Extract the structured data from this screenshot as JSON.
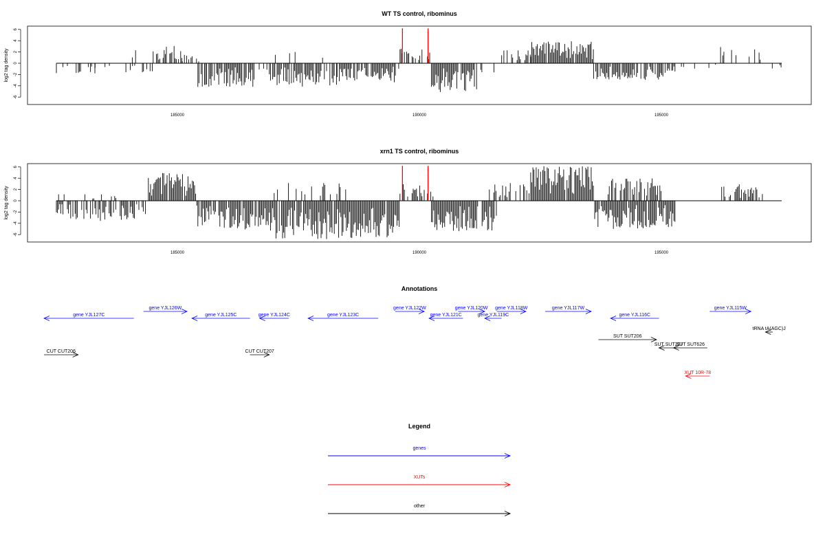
{
  "chart_data": [
    {
      "type": "bar",
      "title": "WT TS control, ribominus",
      "ylabel": "log2 tag density",
      "xlim": [
        182200,
        197600
      ],
      "ylim": [
        -6.5,
        6.5
      ],
      "xticks": [
        "185000",
        "190000",
        "195000"
      ],
      "yticks": [
        "6",
        "4",
        "2",
        "0",
        "-2",
        "-4",
        "-6"
      ],
      "grid": false,
      "series": [
        {
          "color": "#000000",
          "segments": [
            {
              "x0": 182200,
              "x1": 183300,
              "density": 0.25,
              "amp": 2.0,
              "sign": -1
            },
            {
              "x0": 183300,
              "x1": 184500,
              "density": 0.15,
              "amp": 1.6,
              "sign": -1
            },
            {
              "x0": 184000,
              "x1": 184200,
              "density": 0.3,
              "amp": 2.8,
              "sign": 1
            },
            {
              "x0": 184500,
              "x1": 185100,
              "density": 0.7,
              "amp": 3.2,
              "sign": 1
            },
            {
              "x0": 185100,
              "x1": 185500,
              "density": 0.3,
              "amp": 1.5,
              "sign": 1
            },
            {
              "x0": 185400,
              "x1": 186600,
              "density": 0.85,
              "amp": 4.2,
              "sign": -1
            },
            {
              "x0": 186600,
              "x1": 186900,
              "density": 0.2,
              "amp": 1.2,
              "sign": -1
            },
            {
              "x0": 186900,
              "x1": 188300,
              "density": 0.85,
              "amp": 4.2,
              "sign": -1
            },
            {
              "x0": 187000,
              "x1": 187500,
              "density": 0.2,
              "amp": 2.6,
              "sign": 1
            },
            {
              "x0": 188300,
              "x1": 189600,
              "density": 0.85,
              "amp": 3.4,
              "sign": -1
            },
            {
              "x0": 188000,
              "x1": 188500,
              "density": 0.15,
              "amp": 2.0,
              "sign": 1
            },
            {
              "x0": 189600,
              "x1": 190300,
              "density": 0.6,
              "amp": 2.6,
              "sign": 1
            },
            {
              "x0": 190250,
              "x1": 191200,
              "density": 0.95,
              "amp": 5.2,
              "sign": -1
            },
            {
              "x0": 191200,
              "x1": 191700,
              "density": 0.25,
              "amp": 2.0,
              "sign": -1
            },
            {
              "x0": 191700,
              "x1": 192300,
              "density": 0.5,
              "amp": 2.4,
              "sign": 1
            },
            {
              "x0": 192300,
              "x1": 193600,
              "density": 0.95,
              "amp": 3.9,
              "sign": 1
            },
            {
              "x0": 193600,
              "x1": 195300,
              "density": 0.8,
              "amp": 3.0,
              "sign": -1
            },
            {
              "x0": 195300,
              "x1": 196200,
              "density": 0.15,
              "amp": 1.0,
              "sign": -1
            },
            {
              "x0": 196200,
              "x1": 197100,
              "density": 0.3,
              "amp": 3.2,
              "sign": 1
            },
            {
              "x0": 197200,
              "x1": 197550,
              "density": 0.2,
              "amp": 1.0,
              "sign": -1
            }
          ]
        },
        {
          "color": "#ff0000",
          "spikes": [
            {
              "x": 189650,
              "y": 6.2
            },
            {
              "x": 190180,
              "y": 6.2
            }
          ]
        }
      ]
    },
    {
      "type": "bar",
      "title": "xrn1 TS control, ribominus",
      "ylabel": "log2 tag density",
      "xlim": [
        182200,
        197600
      ],
      "ylim": [
        -6.5,
        6.5
      ],
      "xticks": [
        "185000",
        "190000",
        "195000"
      ],
      "yticks": [
        "6",
        "4",
        "2",
        "0",
        "-2",
        "-4",
        "-6"
      ],
      "grid": false,
      "series": [
        {
          "color": "#000000",
          "segments": [
            {
              "x0": 182200,
              "x1": 184400,
              "density": 0.7,
              "amp": 3.6,
              "sign": -1
            },
            {
              "x0": 182400,
              "x1": 183800,
              "density": 0.1,
              "amp": 1.2,
              "sign": 1
            },
            {
              "x0": 184400,
              "x1": 185400,
              "density": 0.95,
              "amp": 5.0,
              "sign": 1
            },
            {
              "x0": 185400,
              "x1": 186900,
              "density": 0.85,
              "amp": 5.4,
              "sign": -1
            },
            {
              "x0": 186900,
              "x1": 189600,
              "density": 0.95,
              "amp": 6.8,
              "sign": -1
            },
            {
              "x0": 187000,
              "x1": 188500,
              "density": 0.25,
              "amp": 3.2,
              "sign": 1
            },
            {
              "x0": 189600,
              "x1": 190300,
              "density": 0.6,
              "amp": 3.0,
              "sign": 1
            },
            {
              "x0": 190250,
              "x1": 191600,
              "density": 0.95,
              "amp": 5.4,
              "sign": -1
            },
            {
              "x0": 191400,
              "x1": 192300,
              "density": 0.6,
              "amp": 3.2,
              "sign": 1
            },
            {
              "x0": 192300,
              "x1": 193600,
              "density": 0.95,
              "amp": 6.2,
              "sign": 1
            },
            {
              "x0": 193600,
              "x1": 195300,
              "density": 0.95,
              "amp": 5.0,
              "sign": -1
            },
            {
              "x0": 193900,
              "x1": 195000,
              "density": 0.7,
              "amp": 4.0,
              "sign": 1
            },
            {
              "x0": 196200,
              "x1": 197100,
              "density": 0.6,
              "amp": 3.0,
              "sign": 1
            }
          ]
        },
        {
          "color": "#ff0000",
          "spikes": [
            {
              "x": 189650,
              "y": 6.2
            },
            {
              "x": 190180,
              "y": 6.2
            }
          ]
        }
      ]
    }
  ],
  "annotations": {
    "title": "Annotations",
    "items": [
      {
        "label": "gene YJL127C",
        "kind": "gene",
        "dir": -1,
        "x0": 182000,
        "x1": 184100,
        "row": 1
      },
      {
        "label": "gene YJL126W",
        "kind": "gene",
        "dir": 1,
        "x0": 184300,
        "x1": 185200,
        "row": 0
      },
      {
        "label": "gene YJL125C",
        "kind": "gene",
        "dir": -1,
        "x0": 185300,
        "x1": 186500,
        "row": 1
      },
      {
        "label": "gene YJL124C",
        "kind": "gene",
        "dir": -1,
        "x0": 186700,
        "x1": 187300,
        "row": 1
      },
      {
        "label": "gene YJL123C",
        "kind": "gene",
        "dir": -1,
        "x0": 187700,
        "x1": 189150,
        "row": 1
      },
      {
        "label": "gene YJL122W",
        "kind": "gene",
        "dir": 1,
        "x0": 189500,
        "x1": 190100,
        "row": 0
      },
      {
        "label": "gene YJL121C",
        "kind": "gene",
        "dir": -1,
        "x0": 190200,
        "x1": 190900,
        "row": 1
      },
      {
        "label": "gene YJL120W",
        "kind": "gene",
        "dir": 1,
        "x0": 190800,
        "x1": 191350,
        "row": 0
      },
      {
        "label": "gene YJL119C",
        "kind": "gene",
        "dir": -1,
        "x0": 191350,
        "x1": 191700,
        "row": 1
      },
      {
        "label": "gene YJL118W",
        "kind": "gene",
        "dir": 1,
        "x0": 191600,
        "x1": 192200,
        "row": 0
      },
      {
        "label": "gene YJL117W",
        "kind": "gene",
        "dir": 1,
        "x0": 192600,
        "x1": 193550,
        "row": 0
      },
      {
        "label": "gene YJL116C",
        "kind": "gene",
        "dir": -1,
        "x0": 193950,
        "x1": 194950,
        "row": 1
      },
      {
        "label": "gene YJL115W",
        "kind": "gene",
        "dir": 1,
        "x0": 196000,
        "x1": 196850,
        "row": 0
      },
      {
        "label": "tRNA tA(AGC)J",
        "kind": "other",
        "dir": -1,
        "x0": 197150,
        "x1": 197300,
        "row": 2
      },
      {
        "label": "SUT SUT206",
        "kind": "other",
        "dir": 1,
        "x0": 193700,
        "x1": 194900,
        "row": 3
      },
      {
        "label": "SUT SUT207",
        "kind": "other",
        "dir": -1,
        "x0": 194950,
        "x1": 195350,
        "row": 4
      },
      {
        "label": "SUT SUT626",
        "kind": "other",
        "dir": -1,
        "x0": 195250,
        "x1": 195950,
        "row": 4
      },
      {
        "label": "CUT CUT206",
        "kind": "other",
        "dir": 1,
        "x0": 182000,
        "x1": 182950,
        "row": 5
      },
      {
        "label": "CUT CUT207",
        "kind": "other",
        "dir": 1,
        "x0": 186500,
        "x1": 186900,
        "row": 5
      },
      {
        "label": "XUT 10R-78",
        "kind": "xut",
        "dir": -1,
        "x0": 195500,
        "x1": 196000,
        "row": 6
      }
    ]
  },
  "legend": {
    "title": "Legend",
    "entries": [
      {
        "label": "genes",
        "color": "#0000ff"
      },
      {
        "label": "XUTs",
        "color": "#ff0000"
      },
      {
        "label": "other",
        "color": "#000000"
      }
    ]
  },
  "colors": {
    "gene": "#0000ff",
    "xut": "#ff0000",
    "other": "#000000"
  }
}
